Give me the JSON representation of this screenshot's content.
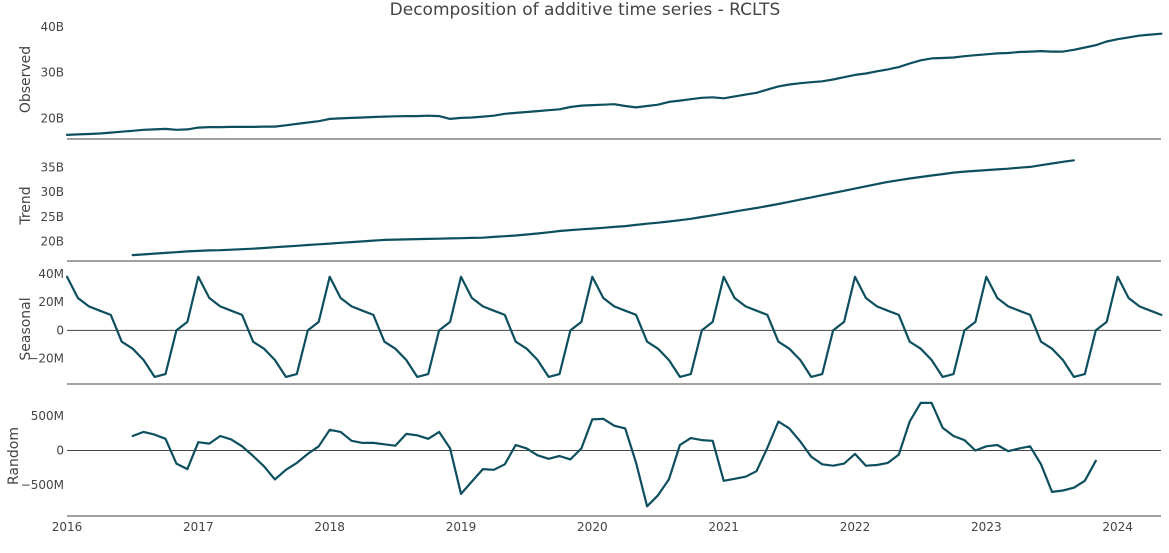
{
  "chart_data": {
    "type": "line",
    "title": "Decomposition of additive time series - RCLTS",
    "line_color": "#0d4f5f",
    "grid": false,
    "x_ticks": [
      "2016",
      "2017",
      "2018",
      "2019",
      "2020",
      "2021",
      "2022",
      "2023",
      "2024"
    ],
    "x_range": [
      2016.0,
      2024.33
    ],
    "panels": [
      {
        "name": "Observed",
        "ylabel": "Observed",
        "ylim": [
          15.5,
          41.5
        ],
        "scale": 1000000000,
        "ticks": [
          {
            "v": 20,
            "label": "20B"
          },
          {
            "v": 30,
            "label": "30B"
          },
          {
            "v": 40,
            "label": "40B"
          }
        ],
        "zero_line": false,
        "x_start": 2016.0,
        "values": [
          16.4,
          16.5,
          16.6,
          16.7,
          16.9,
          17.1,
          17.3,
          17.5,
          17.6,
          17.7,
          17.5,
          17.6,
          18.0,
          18.1,
          18.1,
          18.15,
          18.15,
          18.15,
          18.2,
          18.2,
          18.5,
          18.8,
          19.1,
          19.4,
          19.9,
          20.0,
          20.1,
          20.2,
          20.3,
          20.4,
          20.45,
          20.5,
          20.5,
          20.6,
          20.5,
          19.9,
          20.1,
          20.2,
          20.4,
          20.6,
          21.0,
          21.2,
          21.4,
          21.6,
          21.8,
          22.0,
          22.5,
          22.8,
          22.9,
          23.0,
          23.1,
          22.7,
          22.4,
          22.7,
          23.0,
          23.6,
          23.9,
          24.2,
          24.5,
          24.6,
          24.4,
          24.8,
          25.2,
          25.6,
          26.3,
          27.0,
          27.4,
          27.7,
          27.9,
          28.1,
          28.5,
          29.0,
          29.5,
          29.8,
          30.3,
          30.7,
          31.2,
          32.0,
          32.7,
          33.1,
          33.2,
          33.3,
          33.6,
          33.8,
          34.0,
          34.2,
          34.3,
          34.5,
          34.6,
          34.7,
          34.6,
          34.6,
          35.0,
          35.5,
          36.0,
          36.8,
          37.3,
          37.7,
          38.1,
          38.3,
          38.5
        ]
      },
      {
        "name": "Trend",
        "ylabel": "Trend",
        "ylim": [
          16.0,
          38.6
        ],
        "scale": 1000000000,
        "ticks": [
          {
            "v": 20,
            "label": "20B"
          },
          {
            "v": 25,
            "label": "25B"
          },
          {
            "v": 30,
            "label": "30B"
          },
          {
            "v": 35,
            "label": "35B"
          }
        ],
        "zero_line": false,
        "x_start": 2016.5,
        "values": [
          17.2,
          17.35,
          17.5,
          17.65,
          17.8,
          17.95,
          18.05,
          18.15,
          18.2,
          18.3,
          18.4,
          18.5,
          18.65,
          18.8,
          18.95,
          19.1,
          19.25,
          19.4,
          19.55,
          19.7,
          19.85,
          20.0,
          20.15,
          20.3,
          20.35,
          20.4,
          20.45,
          20.5,
          20.55,
          20.6,
          20.65,
          20.7,
          20.75,
          20.9,
          21.05,
          21.2,
          21.4,
          21.6,
          21.85,
          22.1,
          22.3,
          22.45,
          22.6,
          22.75,
          22.95,
          23.1,
          23.35,
          23.6,
          23.8,
          24.05,
          24.3,
          24.6,
          24.95,
          25.3,
          25.7,
          26.05,
          26.45,
          26.8,
          27.2,
          27.6,
          28.05,
          28.5,
          28.95,
          29.4,
          29.85,
          30.3,
          30.75,
          31.2,
          31.65,
          32.1,
          32.45,
          32.8,
          33.1,
          33.4,
          33.7,
          34.0,
          34.2,
          34.35,
          34.5,
          34.65,
          34.8,
          35.0,
          35.15,
          35.5,
          35.85,
          36.2,
          36.5
        ]
      },
      {
        "name": "Seasonal",
        "ylabel": "Seasonal",
        "ylim": [
          -38,
          40
        ],
        "scale": 1000000,
        "ticks": [
          {
            "v": -20,
            "label": "−20M"
          },
          {
            "v": 0,
            "label": "0"
          },
          {
            "v": 20,
            "label": "20M"
          },
          {
            "v": 40,
            "label": "40M"
          }
        ],
        "zero_line": true,
        "x_start": 2016.0,
        "values": [
          38,
          23,
          17,
          14,
          11,
          -8,
          -13,
          -21,
          -33,
          -31,
          0,
          6,
          38,
          23,
          17,
          14,
          11,
          -8,
          -13,
          -21,
          -33,
          -31,
          0,
          6,
          38,
          23,
          17,
          14,
          11,
          -8,
          -13,
          -21,
          -33,
          -31,
          0,
          6,
          38,
          23,
          17,
          14,
          11,
          -8,
          -13,
          -21,
          -33,
          -31,
          0,
          6,
          38,
          23,
          17,
          14,
          11,
          -8,
          -13,
          -21,
          -33,
          -31,
          0,
          6,
          38,
          23,
          17,
          14,
          11,
          -8,
          -13,
          -21,
          -33,
          -31,
          0,
          6,
          38,
          23,
          17,
          14,
          11,
          -8,
          -13,
          -21,
          -33,
          -31,
          0,
          6,
          38,
          23,
          17,
          14,
          11,
          -8,
          -13,
          -21,
          -33,
          -31,
          0,
          6,
          38,
          23,
          17,
          14,
          11
        ]
      },
      {
        "name": "Random",
        "ylabel": "Random",
        "ylim": [
          -950,
          790
        ],
        "scale": 1000000,
        "ticks": [
          {
            "v": -500,
            "label": "−500M"
          },
          {
            "v": 0,
            "label": "0"
          },
          {
            "v": 500,
            "label": "500M"
          }
        ],
        "zero_line": true,
        "x_start": 2016.5,
        "values": [
          210,
          270,
          230,
          170,
          -190,
          -270,
          120,
          100,
          210,
          160,
          60,
          -80,
          -230,
          -420,
          -280,
          -180,
          -50,
          60,
          300,
          270,
          140,
          110,
          110,
          90,
          70,
          240,
          220,
          170,
          270,
          30,
          -630,
          -450,
          -270,
          -280,
          -200,
          80,
          30,
          -70,
          -120,
          -80,
          -130,
          30,
          450,
          460,
          360,
          320,
          -180,
          -810,
          -650,
          -420,
          80,
          180,
          150,
          140,
          -440,
          -410,
          -380,
          -300,
          40,
          420,
          320,
          130,
          -90,
          -200,
          -220,
          -190,
          -50,
          -220,
          -210,
          -180,
          -60,
          420,
          690,
          690,
          330,
          210,
          150,
          0,
          60,
          80,
          -10,
          30,
          60,
          -200,
          -600,
          -580,
          -540,
          -440,
          -150
        ]
      }
    ]
  }
}
